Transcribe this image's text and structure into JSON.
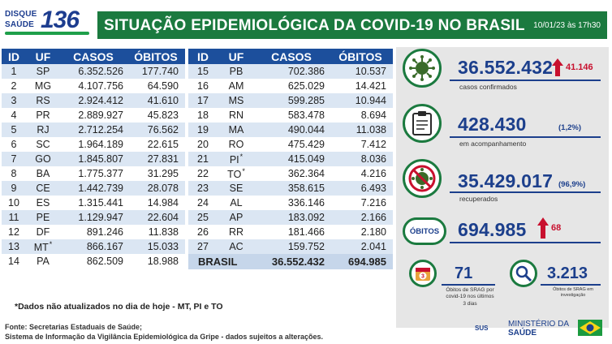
{
  "logo": {
    "line1": "DISQUE",
    "line2": "SAÚDE",
    "number": "136"
  },
  "header": {
    "title": "SITUAÇÃO EPIDEMIOLÓGICA DA COVID-19 NO BRASIL",
    "date": "10/01/23 às 17h30"
  },
  "table_columns": {
    "id": "ID",
    "uf": "UF",
    "casos": "CASOS",
    "obitos": "ÓBITOS"
  },
  "states_left": [
    {
      "id": "1",
      "uf": "SP",
      "star": "",
      "casos": "6.352.526",
      "obitos": "177.740"
    },
    {
      "id": "2",
      "uf": "MG",
      "star": "",
      "casos": "4.107.756",
      "obitos": "64.590"
    },
    {
      "id": "3",
      "uf": "RS",
      "star": "",
      "casos": "2.924.412",
      "obitos": "41.610"
    },
    {
      "id": "4",
      "uf": "PR",
      "star": "",
      "casos": "2.889.927",
      "obitos": "45.823"
    },
    {
      "id": "5",
      "uf": "RJ",
      "star": "",
      "casos": "2.712.254",
      "obitos": "76.562"
    },
    {
      "id": "6",
      "uf": "SC",
      "star": "",
      "casos": "1.964.189",
      "obitos": "22.615"
    },
    {
      "id": "7",
      "uf": "GO",
      "star": "",
      "casos": "1.845.807",
      "obitos": "27.831"
    },
    {
      "id": "8",
      "uf": "BA",
      "star": "",
      "casos": "1.775.377",
      "obitos": "31.295"
    },
    {
      "id": "9",
      "uf": "CE",
      "star": "",
      "casos": "1.442.739",
      "obitos": "28.078"
    },
    {
      "id": "10",
      "uf": "ES",
      "star": "",
      "casos": "1.315.441",
      "obitos": "14.984"
    },
    {
      "id": "11",
      "uf": "PE",
      "star": "",
      "casos": "1.129.947",
      "obitos": "22.604"
    },
    {
      "id": "12",
      "uf": "DF",
      "star": "",
      "casos": "891.246",
      "obitos": "11.838"
    },
    {
      "id": "13",
      "uf": "MT",
      "star": "*",
      "casos": "866.167",
      "obitos": "15.033"
    },
    {
      "id": "14",
      "uf": "PA",
      "star": "",
      "casos": "862.509",
      "obitos": "18.988"
    }
  ],
  "states_right": [
    {
      "id": "15",
      "uf": "PB",
      "star": "",
      "casos": "702.386",
      "obitos": "10.537"
    },
    {
      "id": "16",
      "uf": "AM",
      "star": "",
      "casos": "625.029",
      "obitos": "14.421"
    },
    {
      "id": "17",
      "uf": "MS",
      "star": "",
      "casos": "599.285",
      "obitos": "10.944"
    },
    {
      "id": "18",
      "uf": "RN",
      "star": "",
      "casos": "583.478",
      "obitos": "8.694"
    },
    {
      "id": "19",
      "uf": "MA",
      "star": "",
      "casos": "490.044",
      "obitos": "11.038"
    },
    {
      "id": "20",
      "uf": "RO",
      "star": "",
      "casos": "475.429",
      "obitos": "7.412"
    },
    {
      "id": "21",
      "uf": "PI",
      "star": "*",
      "casos": "415.049",
      "obitos": "8.036"
    },
    {
      "id": "22",
      "uf": "TO",
      "star": "*",
      "casos": "362.364",
      "obitos": "4.216"
    },
    {
      "id": "23",
      "uf": "SE",
      "star": "",
      "casos": "358.615",
      "obitos": "6.493"
    },
    {
      "id": "24",
      "uf": "AL",
      "star": "",
      "casos": "336.146",
      "obitos": "7.216"
    },
    {
      "id": "25",
      "uf": "AP",
      "star": "",
      "casos": "183.092",
      "obitos": "2.166"
    },
    {
      "id": "26",
      "uf": "RR",
      "star": "",
      "casos": "181.466",
      "obitos": "2.180"
    },
    {
      "id": "27",
      "uf": "AC",
      "star": "",
      "casos": "159.752",
      "obitos": "2.041"
    }
  ],
  "total": {
    "label": "BRASIL",
    "casos": "36.552.432",
    "obitos": "694.985"
  },
  "stats": {
    "confirmados": {
      "value": "36.552.432",
      "increase": "41.146",
      "label": "casos confirmados",
      "icon": "virus-icon"
    },
    "acompanhamento": {
      "value": "428.430",
      "pct": "(1,2%)",
      "label": "em acompanhamento",
      "icon": "clipboard-icon"
    },
    "recuperados": {
      "value": "35.429.017",
      "pct": "(96,9%)",
      "label": "recuperados",
      "icon": "virus-crossed-icon"
    },
    "obitos": {
      "badge": "ÓBITOS",
      "value": "694.985",
      "increase": "68"
    },
    "srag": {
      "value": "71",
      "label_lines": [
        "Óbitos de SRAG por",
        "covid-19 nos últimos",
        "3 dias"
      ],
      "icon": "calendar-icon",
      "icon_text": "3"
    },
    "investigacao": {
      "value": "3.213",
      "label_lines": [
        "Óbitos de SRAG em",
        "investigação"
      ],
      "icon": "magnifier-icon"
    }
  },
  "footer": {
    "note": "*Dados não atualizados no dia de hoje - MT, PI e TO",
    "fonte_line1": "Fonte: Secretarias Estaduais de Saúde;",
    "fonte_line2": "Sistema de Informação da Vigilância Epidemiológica da Gripe - dados sujeitos a alterações.",
    "sus": "SUS",
    "ministerio_line1": "MINISTÉRIO DA",
    "ministerio_line2": "SAÚDE"
  },
  "colors": {
    "header_green": "#1b7a3f",
    "table_blue": "#1c4f9c",
    "row_light": "#dbe6f3",
    "stat_blue": "#1c3f8c",
    "up_red": "#c8102e",
    "panel_gray": "#e6e6e6"
  }
}
